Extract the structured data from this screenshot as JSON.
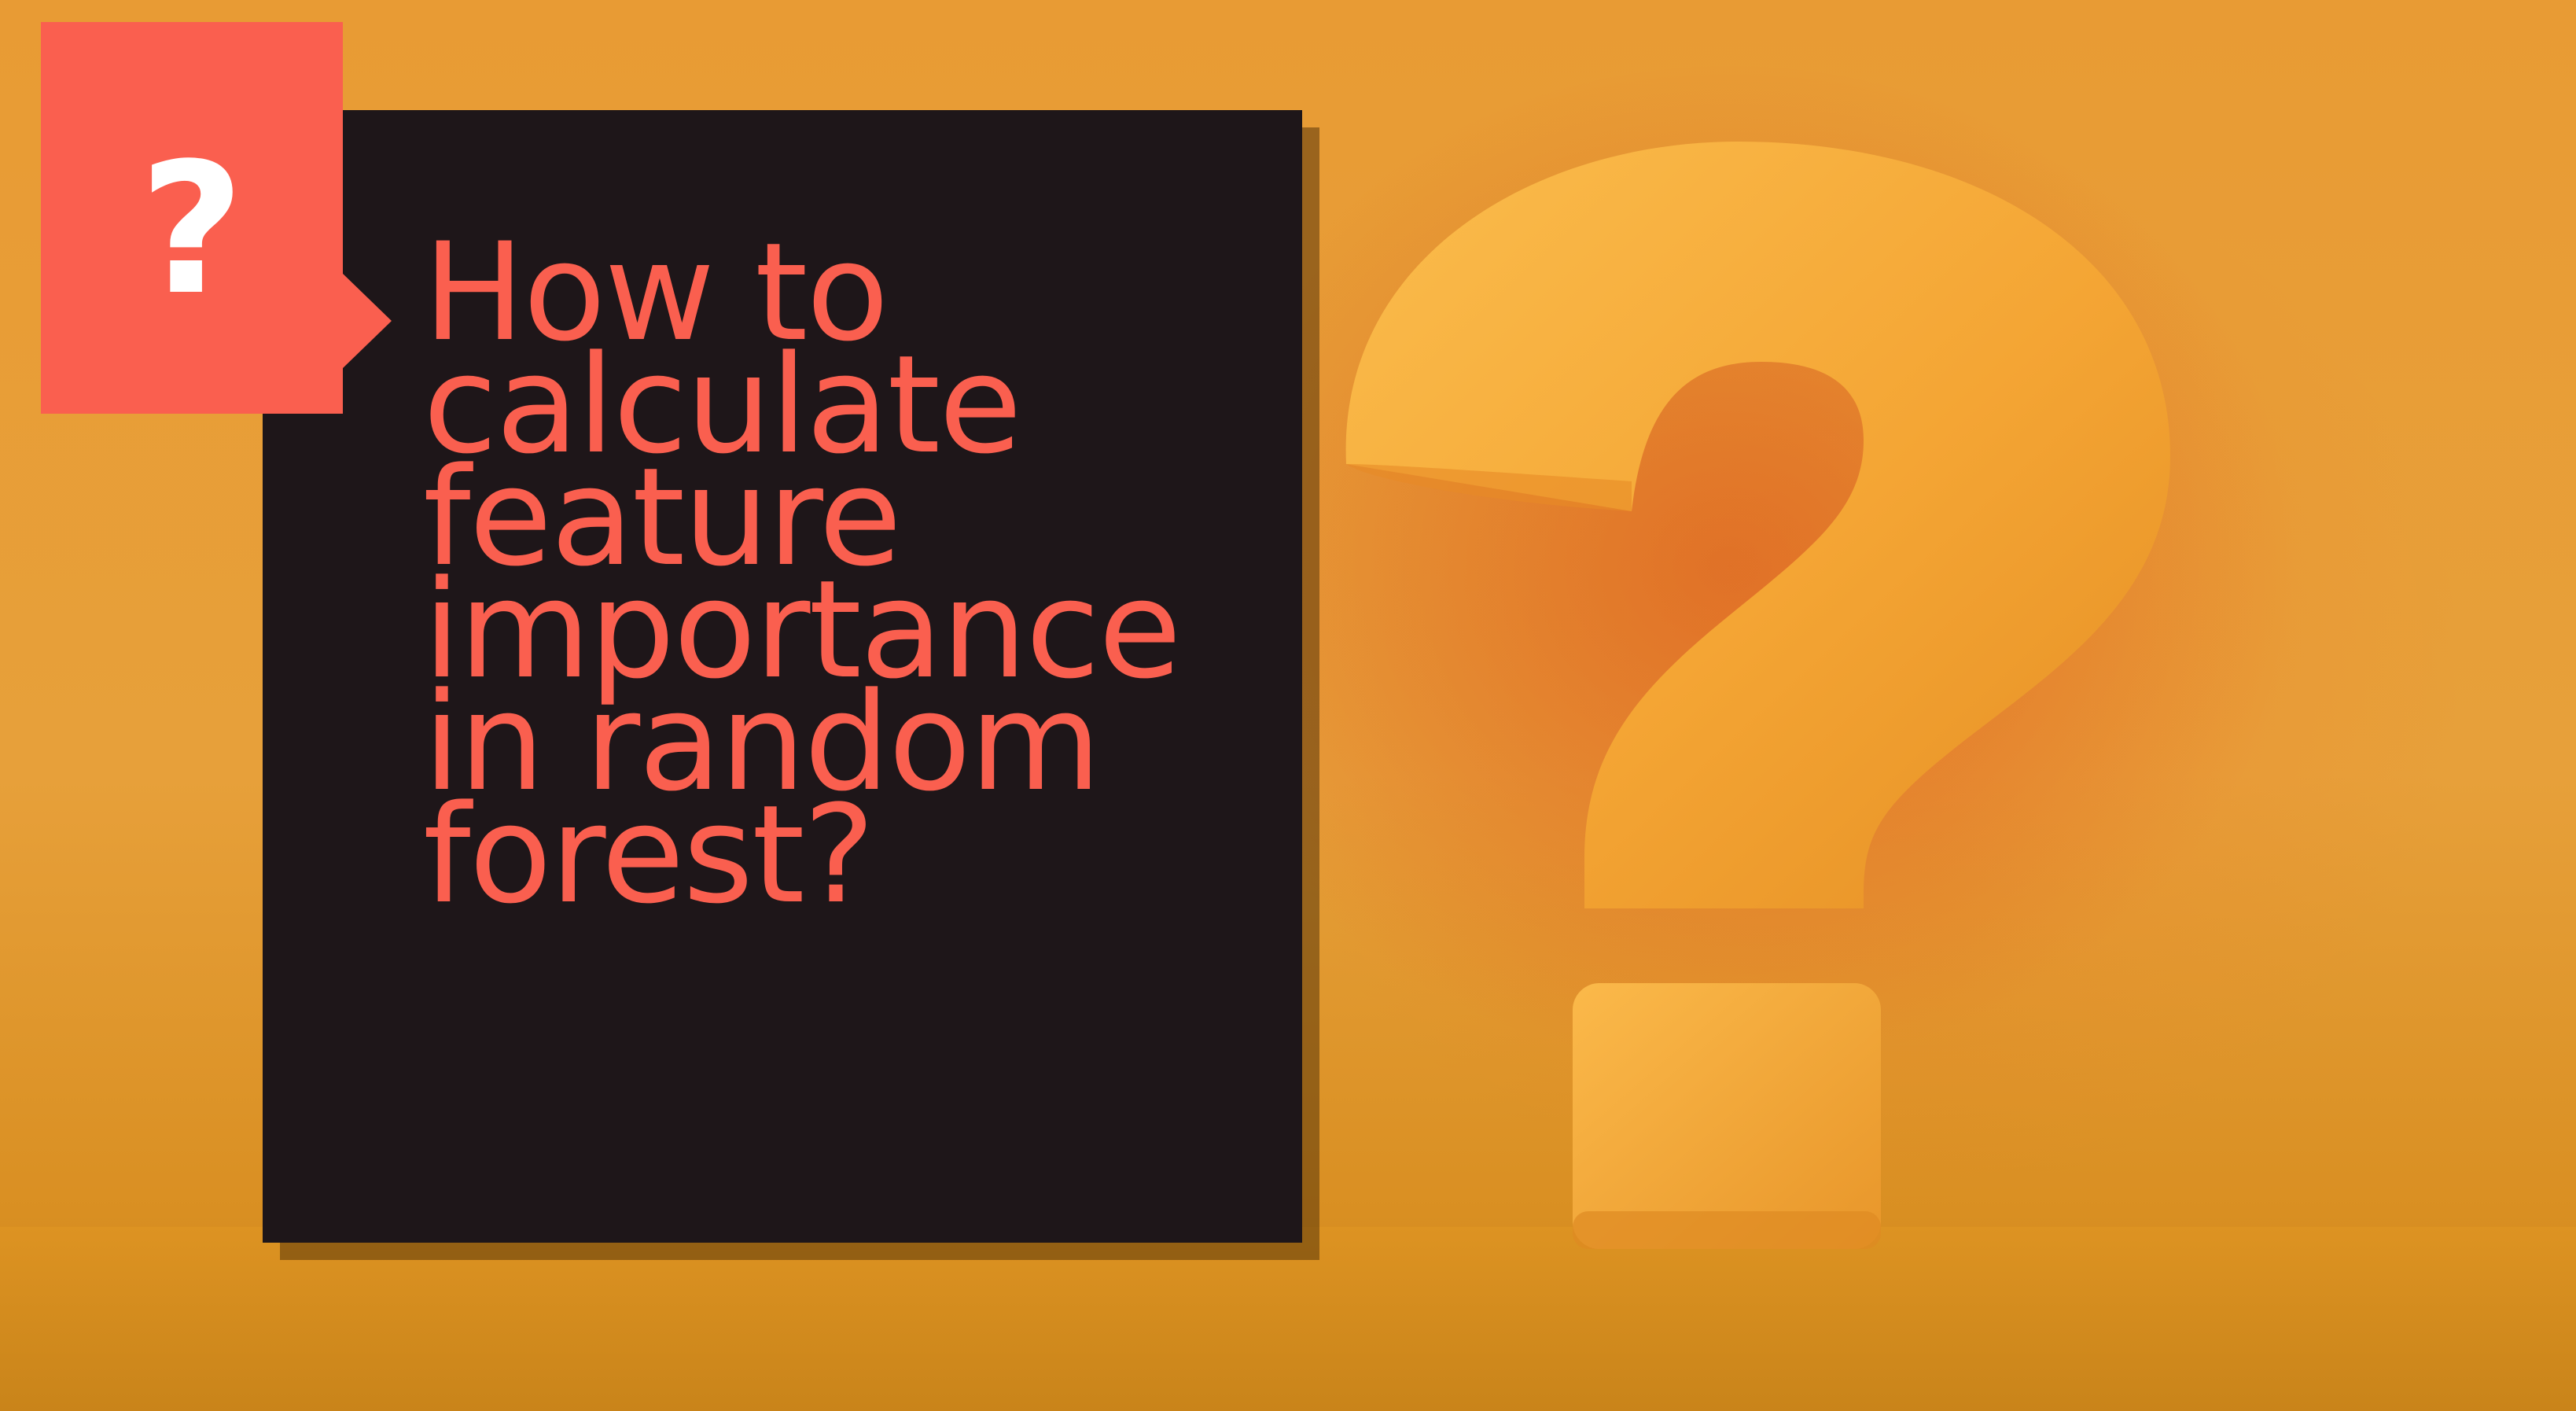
{
  "slide": {
    "headline": "How to\ncalculate\nfeature\nimportance\nin random\nforest?",
    "badge_icon": "question-mark-icon",
    "badge_glyph": "?",
    "background_art": "3d-question-mark-sculpture"
  },
  "colors": {
    "background": "#e89b34",
    "card": "#1e1619",
    "accent": "#fa5f4f",
    "badge_glyph": "#ffffff",
    "sculpture": "#f4a93a"
  }
}
